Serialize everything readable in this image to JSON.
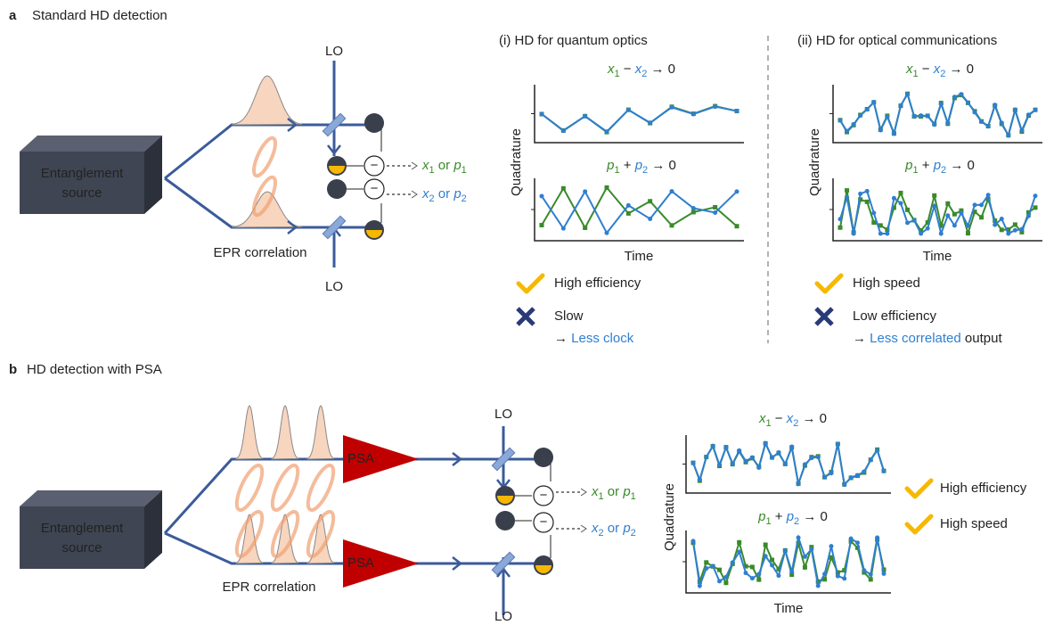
{
  "panel_a": {
    "letter": "a",
    "title": "Standard HD detection",
    "source": [
      "Entanglement",
      "source"
    ],
    "lo_top": "LO",
    "lo_bottom": "LO",
    "epr": "EPR correlation",
    "minus": [
      "−",
      "−"
    ],
    "outputs": [
      [
        "x",
        "1",
        " or ",
        "p",
        "1"
      ],
      [
        "x",
        "2",
        " or ",
        "p",
        "2"
      ]
    ],
    "sub_i": {
      "title": "(i)  HD for quantum optics",
      "eq1": [
        "x",
        "1",
        " − ",
        "x",
        "2",
        " → 0"
      ],
      "eq2": [
        "p",
        "1",
        " + ",
        "p",
        "2",
        " → 0"
      ],
      "ylabel": "Quadrature",
      "xlabel": "Time",
      "pro": "High efficiency",
      "con": "Slow",
      "note": [
        "→ ",
        "Less clock"
      ]
    },
    "sub_ii": {
      "title": "(ii)  HD for optical communications",
      "eq1": [
        "x",
        "1",
        " − ",
        "x",
        "2",
        " → 0"
      ],
      "eq2": [
        "p",
        "1",
        " + ",
        "p",
        "2",
        " → 0"
      ],
      "ylabel": "Quadrature",
      "xlabel": "Time",
      "pro": "High speed",
      "con": "Low efficiency",
      "note": [
        "→ ",
        "Less correlated",
        " output"
      ]
    }
  },
  "panel_b": {
    "letter": "b",
    "title": "HD detection with PSA",
    "source": [
      "Entanglement",
      "source"
    ],
    "psa": [
      "PSA",
      "PSA"
    ],
    "lo_top": "LO",
    "lo_bottom": "LO",
    "epr": "EPR correlation",
    "minus": [
      "−",
      "−"
    ],
    "outputs": [
      [
        "x",
        "1",
        " or ",
        "p",
        "1"
      ],
      [
        "x",
        "2",
        " or ",
        "p",
        "2"
      ]
    ],
    "eq1": [
      "x",
      "1",
      " − ",
      "x",
      "2",
      " → 0"
    ],
    "eq2": [
      "p",
      "1",
      " + ",
      "p",
      "2",
      " → 0"
    ],
    "ylabel": "Quadrature",
    "xlabel": "Time",
    "pros": [
      "High efficiency",
      "High speed"
    ]
  }
}
